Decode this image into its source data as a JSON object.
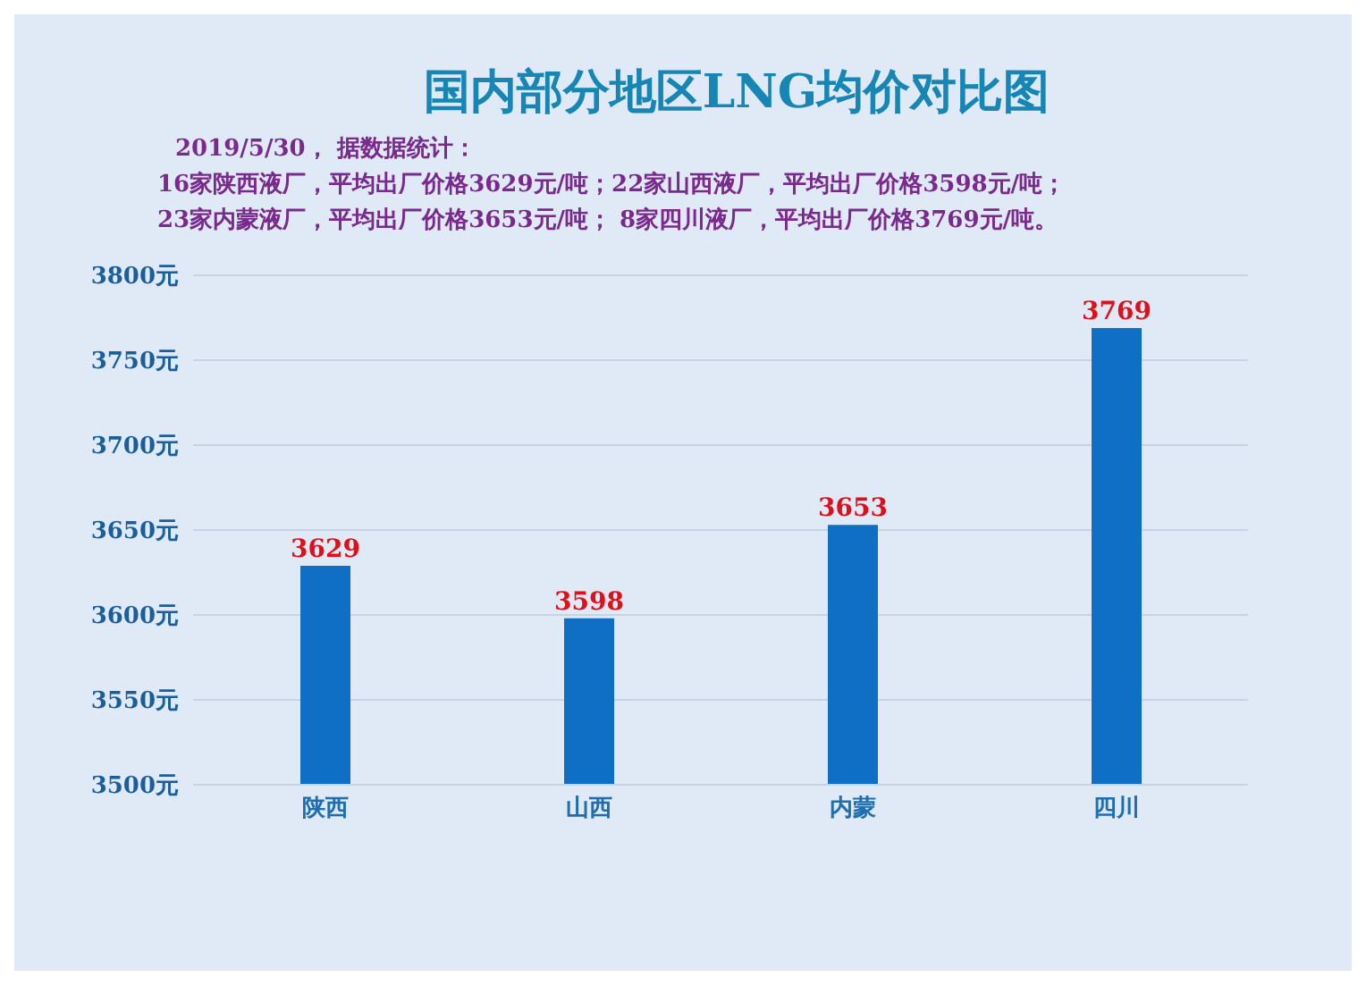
{
  "chart_data": {
    "type": "bar",
    "title": "国内部分地区LNG均价对比图",
    "annotations": [
      "2019/5/30， 据数据统计：",
      "16家陕西液厂，平均出厂价格3629元/吨；22家山西液厂，平均出厂价格3598元/吨；",
      "23家内蒙液厂，平均出厂价格3653元/吨； 8家四川液厂，平均出厂价格3769元/吨。"
    ],
    "categories": [
      "陕西",
      "山西",
      "内蒙",
      "四川"
    ],
    "values": [
      3629,
      3598,
      3653,
      3769
    ],
    "color": "#0e6fc4",
    "ylim": [
      3500,
      3800
    ],
    "yticks": [
      {
        "value": 3500,
        "label": "3500元"
      },
      {
        "value": 3550,
        "label": "3550元"
      },
      {
        "value": 3600,
        "label": "3600元"
      },
      {
        "value": 3650,
        "label": "3650元"
      },
      {
        "value": 3700,
        "label": "3700元"
      },
      {
        "value": 3750,
        "label": "3750元"
      },
      {
        "value": 3800,
        "label": "3800元"
      }
    ],
    "grid": "y",
    "data_labels": true,
    "legend": false
  }
}
